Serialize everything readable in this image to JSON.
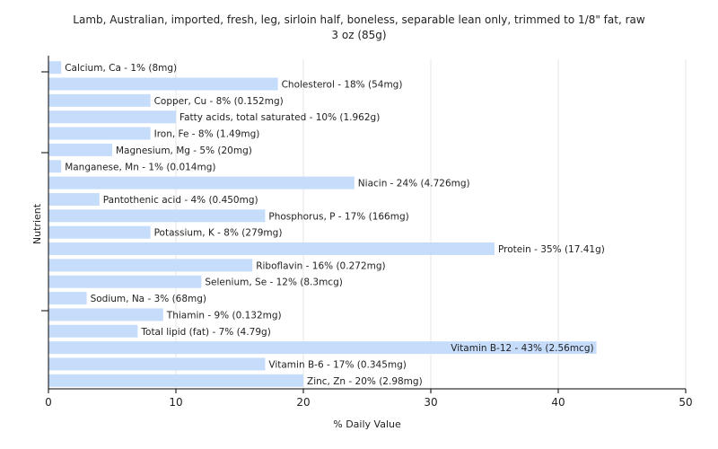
{
  "chart_data": {
    "type": "bar",
    "orientation": "horizontal",
    "title": "Lamb, Australian, imported, fresh, leg, sirloin half, boneless, separable lean only, trimmed to 1/8\" fat, raw",
    "subtitle": "3 oz (85g)",
    "xlabel": "% Daily Value",
    "ylabel": "Nutrient",
    "xlim": [
      0,
      50
    ],
    "xticks": [
      "0",
      "10",
      "20",
      "30",
      "40",
      "50"
    ],
    "grid": true,
    "bar_color": "#c6dcfb",
    "bars": [
      {
        "name": "Calcium, Ca",
        "value": 1,
        "label": "Calcium, Ca - 1% (8mg)"
      },
      {
        "name": "Cholesterol",
        "value": 18,
        "label": "Cholesterol - 18% (54mg)"
      },
      {
        "name": "Copper, Cu",
        "value": 8,
        "label": "Copper, Cu - 8% (0.152mg)"
      },
      {
        "name": "Fatty acids, total saturated",
        "value": 10,
        "label": "Fatty acids, total saturated - 10% (1.962g)"
      },
      {
        "name": "Iron, Fe",
        "value": 8,
        "label": "Iron, Fe - 8% (1.49mg)"
      },
      {
        "name": "Magnesium, Mg",
        "value": 5,
        "label": "Magnesium, Mg - 5% (20mg)"
      },
      {
        "name": "Manganese, Mn",
        "value": 1,
        "label": "Manganese, Mn - 1% (0.014mg)"
      },
      {
        "name": "Niacin",
        "value": 24,
        "label": "Niacin - 24% (4.726mg)"
      },
      {
        "name": "Pantothenic acid",
        "value": 4,
        "label": "Pantothenic acid - 4% (0.450mg)"
      },
      {
        "name": "Phosphorus, P",
        "value": 17,
        "label": "Phosphorus, P - 17% (166mg)"
      },
      {
        "name": "Potassium, K",
        "value": 8,
        "label": "Potassium, K - 8% (279mg)"
      },
      {
        "name": "Protein",
        "value": 35,
        "label": "Protein - 35% (17.41g)"
      },
      {
        "name": "Riboflavin",
        "value": 16,
        "label": "Riboflavin - 16% (0.272mg)"
      },
      {
        "name": "Selenium, Se",
        "value": 12,
        "label": "Selenium, Se - 12% (8.3mcg)"
      },
      {
        "name": "Sodium, Na",
        "value": 3,
        "label": "Sodium, Na - 3% (68mg)"
      },
      {
        "name": "Thiamin",
        "value": 9,
        "label": "Thiamin - 9% (0.132mg)"
      },
      {
        "name": "Total lipid (fat)",
        "value": 7,
        "label": "Total lipid (fat) - 7% (4.79g)"
      },
      {
        "name": "Vitamin B-12",
        "value": 43,
        "label": "Vitamin B-12 - 43% (2.56mcg)"
      },
      {
        "name": "Vitamin B-6",
        "value": 17,
        "label": "Vitamin B-6 - 17% (0.345mg)"
      },
      {
        "name": "Zinc, Zn",
        "value": 20,
        "label": "Zinc, Zn - 20% (2.98mg)"
      }
    ]
  }
}
